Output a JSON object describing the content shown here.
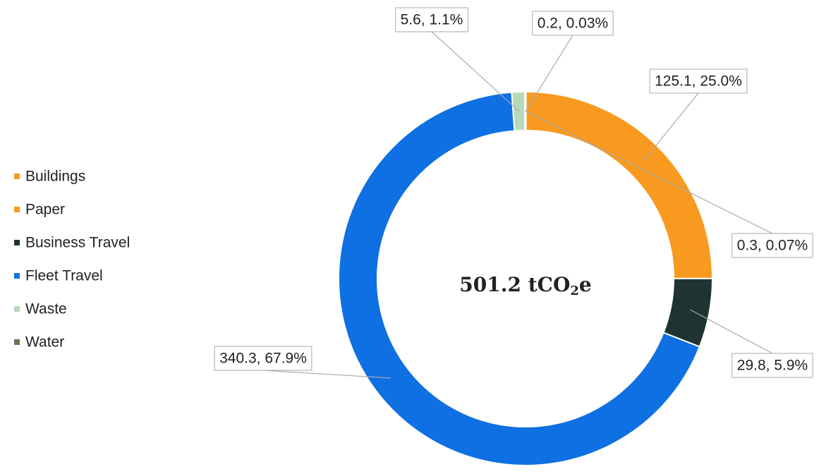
{
  "chart_data": {
    "type": "donut",
    "categories": [
      "Buildings",
      "Paper",
      "Business Travel",
      "Fleet Travel",
      "Waste",
      "Water"
    ],
    "values": [
      0.2,
      125.1,
      29.8,
      340.3,
      5.6,
      0.3
    ],
    "value_labels": [
      "0.2, 0.03%",
      "125.1, 25.0%",
      "29.8, 5.9%",
      "340.3, 67.9%",
      "5.6, 1.1%",
      "0.3, 0.07%"
    ],
    "colors": [
      "#f7991f",
      "#f89a1f",
      "#1f3333",
      "#0e70e2",
      "#b5d9ba",
      "#6e7257"
    ],
    "center_label": [
      "501.2 tCO",
      "2",
      "e"
    ],
    "legend": "left"
  }
}
